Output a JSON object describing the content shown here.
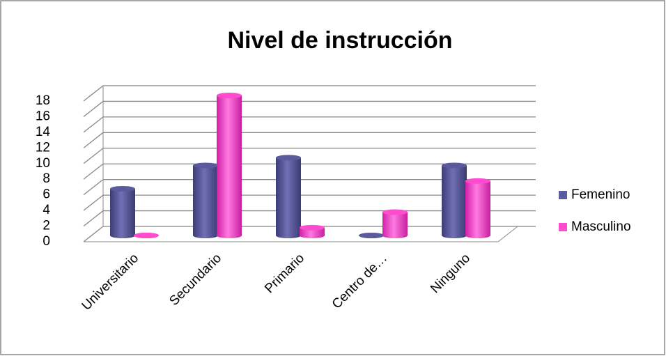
{
  "chart_data": {
    "type": "bar3d",
    "title": "Nivel de instrucción",
    "categories": [
      "Universitario",
      "Secundario",
      "Primario",
      "Centro de…",
      "Ninguno"
    ],
    "series": [
      {
        "name": "Femenino",
        "color": "#5a5a9c",
        "values": [
          6,
          9,
          10,
          0,
          9
        ]
      },
      {
        "name": "Masculino",
        "color": "#ff4ccf",
        "values": [
          0,
          18,
          1,
          3,
          7
        ]
      }
    ],
    "ylim": [
      0,
      18
    ],
    "yticks": [
      0,
      2,
      4,
      6,
      8,
      10,
      12,
      14,
      16,
      18
    ],
    "grid": true,
    "legend": "right"
  }
}
